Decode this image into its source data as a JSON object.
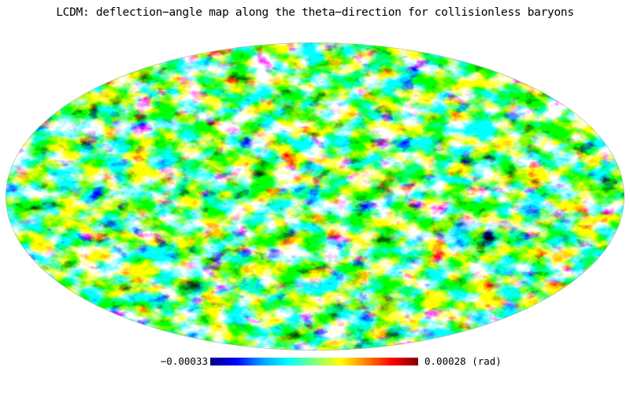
{
  "title": "LCDM: deflection−angle map along the theta−direction for collisionless baryons",
  "map": {
    "projection": "mollweide",
    "quantity": "deflection angle (theta-direction)",
    "colormap": [
      "#000080",
      "#0000ff",
      "#00a0ff",
      "#00ffff",
      "#80ff80",
      "#ffff00",
      "#ff8000",
      "#ff0000",
      "#800000"
    ],
    "colorbar": {
      "min_label": "−0.00033",
      "max_label": "0.00028 (rad)",
      "min": -0.00033,
      "max": 0.00028,
      "unit": "rad"
    }
  }
}
